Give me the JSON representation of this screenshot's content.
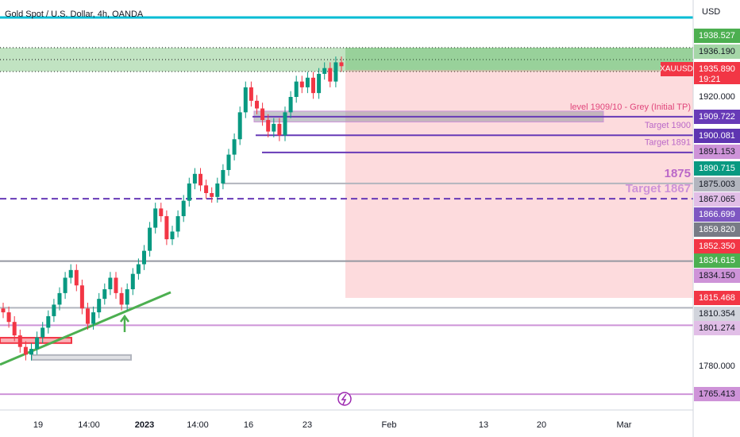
{
  "chart_data": {
    "type": "candlestick",
    "title": "Gold Spot / U.S. Dollar, 4h, OANDA",
    "currency": "USD",
    "symbol": "XAUUSD",
    "countdown": "19:21",
    "ylim": [
      1759.7,
      1970.4
    ],
    "yticks": [
      {
        "value": 1920,
        "label": "1920.000"
      },
      {
        "value": 1780,
        "label": "1780.000"
      }
    ],
    "colors": {
      "up": "#089981",
      "down": "#f23645"
    },
    "open": [
      1810,
      1808,
      1803,
      1796,
      1790,
      1786,
      1789,
      1795,
      1800,
      1806,
      1812,
      1818,
      1826,
      1830,
      1822,
      1810,
      1802,
      1808,
      1815,
      1820,
      1826,
      1818,
      1812,
      1820,
      1828,
      1833,
      1840,
      1852,
      1862,
      1858,
      1846,
      1850,
      1858,
      1866,
      1875,
      1880,
      1874,
      1870,
      1868,
      1875,
      1882,
      1890,
      1898,
      1912,
      1925,
      1918,
      1914,
      1908,
      1902,
      1906,
      1900,
      1912,
      1920,
      1928,
      1925,
      1930,
      1922,
      1932,
      1935,
      1928,
      1938
    ],
    "high": [
      1813,
      1811,
      1806,
      1799,
      1793,
      1792,
      1798,
      1803,
      1809,
      1815,
      1821,
      1829,
      1833,
      1833,
      1825,
      1813,
      1811,
      1818,
      1823,
      1829,
      1829,
      1821,
      1823,
      1831,
      1836,
      1843,
      1855,
      1865,
      1865,
      1861,
      1853,
      1861,
      1869,
      1878,
      1883,
      1883,
      1877,
      1873,
      1878,
      1885,
      1893,
      1901,
      1915,
      1928,
      1928,
      1921,
      1917,
      1911,
      1909,
      1909,
      1915,
      1923,
      1931,
      1931,
      1933,
      1933,
      1935,
      1938,
      1938,
      1941,
      1941
    ],
    "low": [
      1805,
      1800,
      1793,
      1787,
      1783,
      1783,
      1786,
      1792,
      1797,
      1803,
      1809,
      1815,
      1823,
      1819,
      1807,
      1799,
      1799,
      1805,
      1812,
      1817,
      1815,
      1809,
      1809,
      1817,
      1825,
      1830,
      1837,
      1849,
      1855,
      1843,
      1843,
      1847,
      1855,
      1863,
      1872,
      1871,
      1867,
      1865,
      1865,
      1872,
      1879,
      1887,
      1895,
      1909,
      1915,
      1911,
      1905,
      1899,
      1899,
      1897,
      1897,
      1909,
      1917,
      1922,
      1922,
      1919,
      1919,
      1929,
      1925,
      1925,
      1933
    ],
    "close": [
      1808,
      1803,
      1796,
      1790,
      1786,
      1789,
      1795,
      1800,
      1806,
      1812,
      1818,
      1826,
      1830,
      1822,
      1810,
      1802,
      1808,
      1815,
      1820,
      1826,
      1818,
      1812,
      1820,
      1828,
      1833,
      1840,
      1852,
      1862,
      1858,
      1846,
      1850,
      1858,
      1866,
      1875,
      1880,
      1874,
      1870,
      1868,
      1875,
      1882,
      1890,
      1898,
      1912,
      1925,
      1918,
      1914,
      1908,
      1902,
      1906,
      1900,
      1912,
      1920,
      1928,
      1925,
      1930,
      1922,
      1932,
      1935,
      1928,
      1938,
      1936
    ],
    "x_labels": [
      "19",
      "14:00",
      "2023",
      "14:00",
      "16",
      "23",
      "Feb",
      "13",
      "20",
      "Mar"
    ],
    "zone": {
      "top": 1945.6,
      "bottom": 1933.2,
      "color": "#4caf50"
    },
    "position": {
      "stop": 1945.6,
      "entry": 1934,
      "target": 1815.5
    },
    "trendline": {
      "start": 1780.8,
      "end": 1818.4,
      "color": "#4caf50"
    },
    "boxes": [
      {
        "top": 1794.8,
        "bottom": 1792,
        "color": "#f23645"
      },
      {
        "top": 1785.8,
        "bottom": 1783.3,
        "color": "#b2b5be"
      }
    ],
    "levels": [
      {
        "value": 1961.3,
        "color": "#00bcd4"
      },
      {
        "value": 1909.722,
        "color": "#673ab7",
        "text": "level 1909/10 - Grey (Initial TP)",
        "text_color": "#e0457b"
      },
      {
        "value": 1900.081,
        "color": "#673ab7",
        "text": "Target 1900",
        "text_color": "#ba68c8"
      },
      {
        "value": 1891.153,
        "color": "#673ab7",
        "text": "Target 1891",
        "text_color": "#ba68c8"
      },
      {
        "value": 1875.003,
        "color": "#b2b5be",
        "text": "1875",
        "text_color": "#ba68c8"
      },
      {
        "value": 1867.065,
        "color": "#673ab7",
        "dashed": true,
        "text": "Target 1867",
        "text_color": "#ce93d8"
      },
      {
        "value": 1834.615,
        "color": "#9598a1"
      },
      {
        "value": 1810.354,
        "color": "#b2b5be"
      },
      {
        "value": 1801.274,
        "color": "#ce93d8"
      },
      {
        "value": 1765.413,
        "color": "#ce93d8"
      }
    ],
    "price_labels": [
      {
        "value": 1938.527,
        "color": "#4caf50"
      },
      {
        "value": 1936.19,
        "label": "1936.190",
        "color": "#a5d6a7"
      },
      {
        "value": 1935.89,
        "label": "1935.890",
        "color": "#f23645"
      },
      {
        "value": 1909.722,
        "color": "#673ab7"
      },
      {
        "value": 1900.081,
        "color": "#5e35b1"
      },
      {
        "value": 1891.153,
        "color": "#ce93d8"
      },
      {
        "value": 1890.715,
        "color": "#089981"
      },
      {
        "value": 1875.003,
        "color": "#b2b5be"
      },
      {
        "value": 1867.065,
        "color": "#e1bee7"
      },
      {
        "value": 1866.699,
        "color": "#7e57c2"
      },
      {
        "value": 1859.82,
        "label": "1859.820",
        "color": "#787b86"
      },
      {
        "value": 1852.35,
        "label": "1852.350",
        "color": "#f23645"
      },
      {
        "value": 1834.615,
        "color": "#4caf50"
      },
      {
        "value": 1834.15,
        "label": "1834.150",
        "color": "#ce93d8"
      },
      {
        "value": 1815.468,
        "color": "#f23645"
      },
      {
        "value": 1810.354,
        "color": "#d1d4dc"
      },
      {
        "value": 1801.274,
        "color": "#e1bee7"
      },
      {
        "value": 1765.413,
        "color": "#ce93d8"
      }
    ]
  }
}
